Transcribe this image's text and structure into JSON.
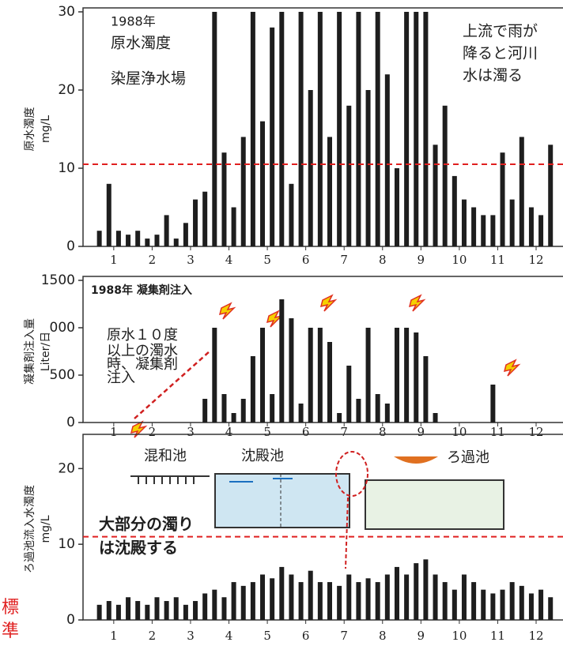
{
  "chart_data": [
    {
      "type": "bar",
      "y_label": [
        "原水濁度",
        "mg/L"
      ],
      "annotations": [
        "1988年",
        "原水濁度",
        "染屋浄水場",
        "上流で雨が",
        "降ると河川",
        "水は濁る"
      ],
      "x": [
        0.625,
        0.875,
        1.125,
        1.375,
        1.625,
        1.875,
        2.125,
        2.375,
        2.625,
        2.875,
        3.125,
        3.375,
        3.625,
        3.875,
        4.125,
        4.375,
        4.625,
        4.875,
        5.125,
        5.375,
        5.625,
        5.875,
        6.125,
        6.375,
        6.625,
        6.875,
        7.125,
        7.375,
        7.625,
        7.875,
        8.125,
        8.375,
        8.625,
        8.875,
        9.125,
        9.375,
        9.625,
        9.875,
        10.125,
        10.375,
        10.625,
        10.875,
        11.125,
        11.375,
        11.625,
        11.875,
        12.125,
        12.375
      ],
      "values": [
        2,
        8,
        2,
        1.5,
        2,
        1,
        1.5,
        4,
        1,
        3,
        6,
        7,
        30,
        12,
        5,
        14,
        30,
        16,
        28,
        30,
        8,
        30,
        20,
        30,
        14,
        30,
        18,
        30,
        20,
        30,
        22,
        10,
        30,
        30,
        30,
        13,
        18,
        9,
        6,
        5,
        4,
        4,
        12,
        6,
        14,
        5,
        4,
        13
      ],
      "color": "#1e1e1e",
      "xlim": [
        0.2,
        12.7
      ],
      "xticks": [
        1,
        2,
        3,
        4,
        5,
        6,
        7,
        8,
        9,
        10,
        11,
        12
      ],
      "ylim": [
        0,
        30
      ],
      "yticks": [
        0,
        10,
        20,
        30
      ],
      "reference_line": {
        "value": 10.5,
        "color": "#e02020"
      }
    },
    {
      "type": "bar",
      "title": "1988年 凝集剤注入",
      "y_label": [
        "凝集剤注入量",
        "Liter/日"
      ],
      "annotations": [
        "原水１０度",
        "以上の濁水",
        "時、凝集剤",
        "注入"
      ],
      "x": [
        0.625,
        0.875,
        1.125,
        1.375,
        1.625,
        1.875,
        2.125,
        2.375,
        2.625,
        2.875,
        3.125,
        3.375,
        3.625,
        3.875,
        4.125,
        4.375,
        4.625,
        4.875,
        5.125,
        5.375,
        5.625,
        5.875,
        6.125,
        6.375,
        6.625,
        6.875,
        7.125,
        7.375,
        7.625,
        7.875,
        8.125,
        8.375,
        8.625,
        8.875,
        9.125,
        9.375,
        9.625,
        9.875,
        10.125,
        10.375,
        10.625,
        10.875,
        11.125,
        11.375,
        11.625,
        11.875,
        12.125,
        12.375
      ],
      "values": [
        0,
        0,
        0,
        0,
        0,
        0,
        0,
        0,
        0,
        0,
        0,
        250,
        1000,
        300,
        100,
        250,
        700,
        1000,
        300,
        1300,
        1100,
        200,
        1000,
        1000,
        850,
        100,
        600,
        250,
        1000,
        300,
        200,
        1000,
        1000,
        950,
        700,
        100,
        0,
        0,
        0,
        0,
        0,
        400,
        0,
        0,
        0,
        0,
        0,
        0
      ],
      "color": "#1e1e1e",
      "xlim": [
        0.2,
        12.7
      ],
      "xticks": [
        1,
        2,
        3,
        4,
        5,
        6,
        7,
        8,
        9,
        10,
        11,
        12
      ],
      "ylim": [
        0,
        1500
      ],
      "yticks": [
        0,
        500,
        {
          "value": 1000,
          "label": "000"
        },
        1500
      ]
    },
    {
      "type": "bar",
      "y_label": [
        "ろ過池流入水濁度",
        "mg/L"
      ],
      "annotations": [
        "混和池",
        "沈殿池",
        "ろ過池",
        "大部分の濁り",
        "は沈殿する"
      ],
      "x": [
        0.625,
        0.875,
        1.125,
        1.375,
        1.625,
        1.875,
        2.125,
        2.375,
        2.625,
        2.875,
        3.125,
        3.375,
        3.625,
        3.875,
        4.125,
        4.375,
        4.625,
        4.875,
        5.125,
        5.375,
        5.625,
        5.875,
        6.125,
        6.375,
        6.625,
        6.875,
        7.125,
        7.375,
        7.625,
        7.875,
        8.125,
        8.375,
        8.625,
        8.875,
        9.125,
        9.375,
        9.625,
        9.875,
        10.125,
        10.375,
        10.625,
        10.875,
        11.125,
        11.375,
        11.625,
        11.875,
        12.125,
        12.375
      ],
      "values": [
        2,
        2.5,
        2,
        3,
        2.5,
        2,
        3,
        2.5,
        3,
        2,
        2.5,
        3.5,
        4,
        3,
        5,
        4.5,
        5,
        6,
        5.5,
        7,
        6,
        5,
        6.5,
        5,
        5,
        4.5,
        6,
        5,
        5.5,
        5,
        6,
        7,
        6,
        7.5,
        8,
        6,
        5,
        4,
        6,
        5,
        4,
        3.5,
        4,
        5,
        4.5,
        3.5,
        4,
        3
      ],
      "color": "#1e1e1e",
      "xlim": [
        0.2,
        12.7
      ],
      "xticks": [
        1,
        2,
        3,
        4,
        5,
        6,
        7,
        8,
        9,
        10,
        11,
        12
      ],
      "ylim": [
        0,
        24
      ],
      "yticks": [
        0,
        10,
        20
      ],
      "reference_line": {
        "value": 11,
        "color": "#e02020"
      }
    }
  ],
  "side_label": [
    "標",
    "準"
  ]
}
